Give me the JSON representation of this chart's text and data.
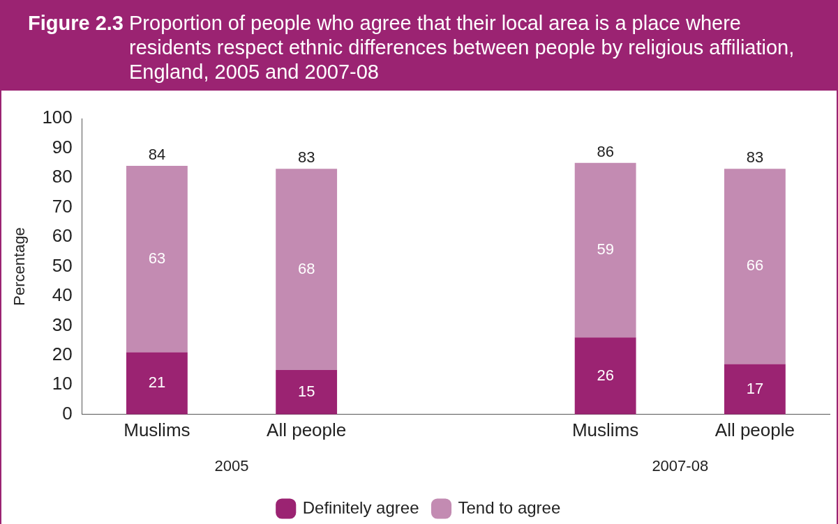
{
  "chart_data": {
    "type": "bar",
    "title": "Figure 2.3 Proportion of people who agree that their local area is a place where residents respect ethnic differences between people by religious affiliation, England, 2005 and 2007-08",
    "ylabel": "Percentage",
    "categories": [
      "Muslims",
      "All people",
      null,
      "Muslims",
      "All people"
    ],
    "stacked": true,
    "series": [
      {
        "name": "Definitely agree",
        "color": "#9b2372",
        "values": [
          21,
          15,
          null,
          26,
          17
        ]
      },
      {
        "name": "Tend to agree",
        "color": "#c38bb2",
        "values": [
          63,
          68,
          null,
          59,
          66
        ]
      }
    ],
    "totals": [
      "84",
      "83",
      null,
      "86",
      "83"
    ],
    "data_labels": true,
    "annotations": [
      "2005",
      "2007-08"
    ],
    "ylim": [
      0,
      100
    ],
    "yticks": [
      0,
      10,
      20,
      30,
      40,
      50,
      60,
      70,
      80,
      90,
      100
    ],
    "grid": false,
    "legend": "bottom"
  }
}
